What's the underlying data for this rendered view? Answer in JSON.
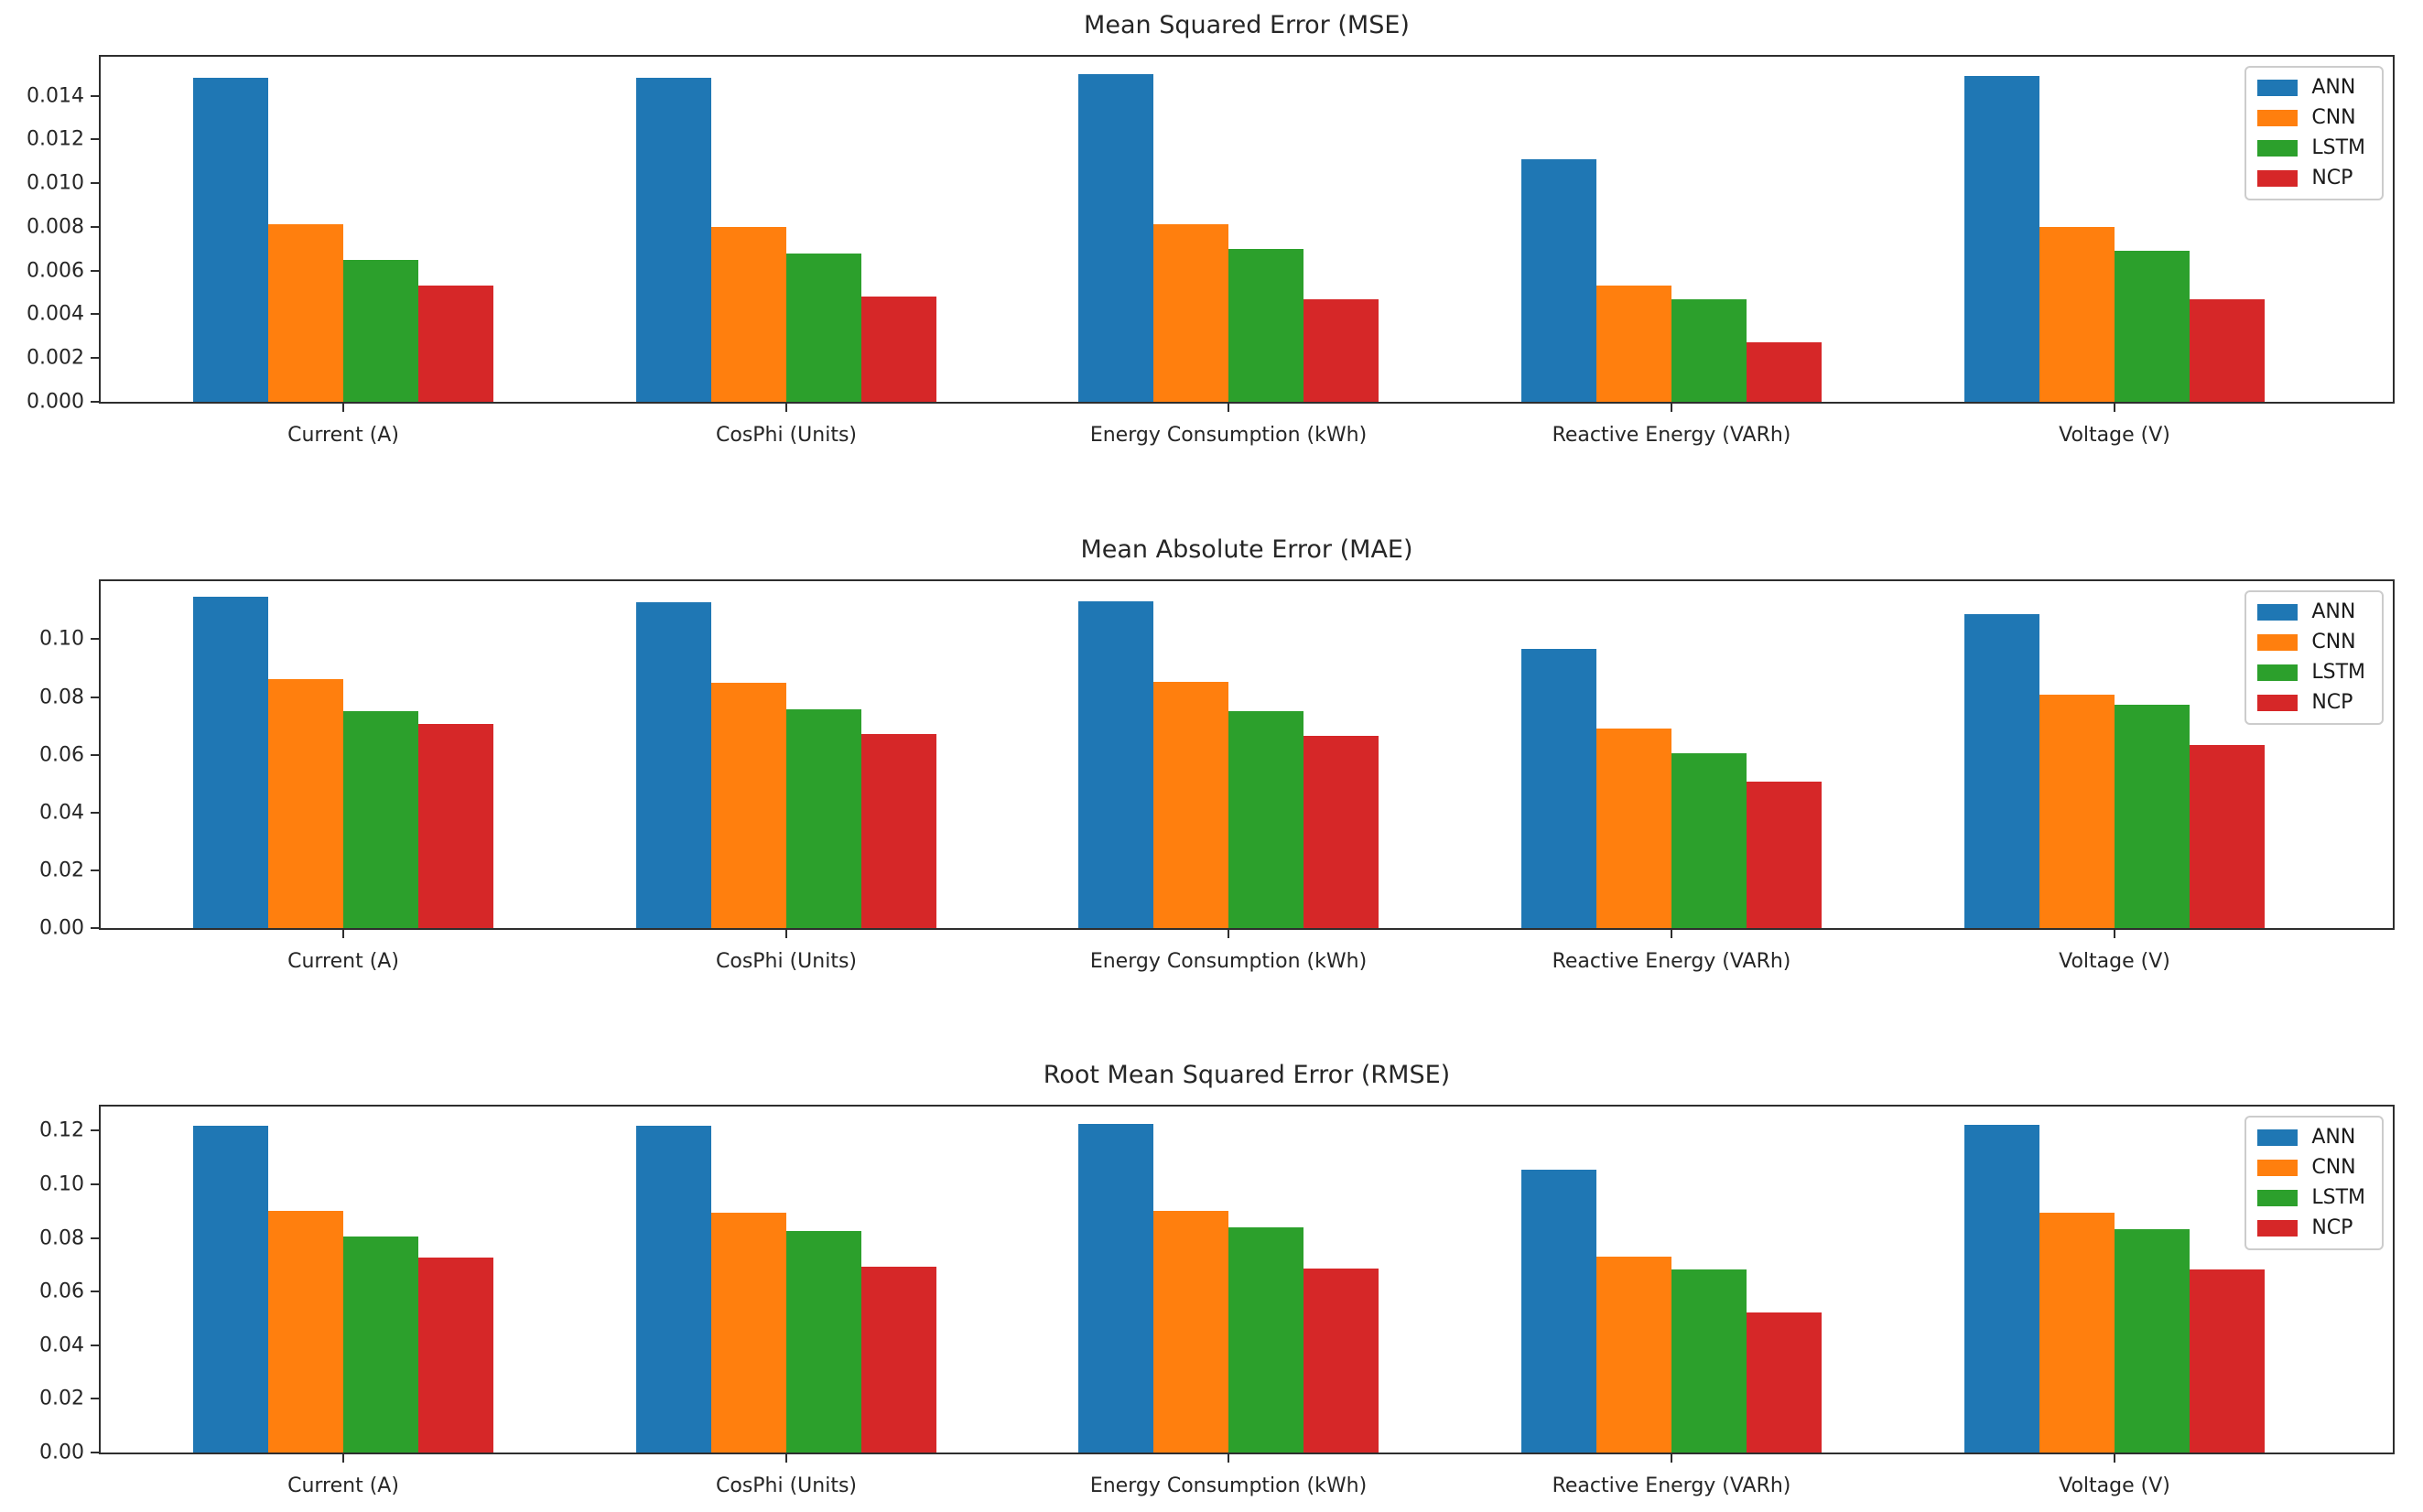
{
  "figure": {
    "background": "#ffffff"
  },
  "palette": {
    "ANN": "#1f77b4",
    "CNN": "#ff7f0e",
    "LSTM": "#2ca02c",
    "NCP": "#d62728"
  },
  "chart_data": [
    {
      "type": "bar",
      "title": "Mean Squared Error (MSE)",
      "categories": [
        "Current (A)",
        "CosPhi (Units)",
        "Energy Consumption (kWh)",
        "Reactive Energy (VARh)",
        "Voltage (V)"
      ],
      "series": [
        {
          "name": "ANN",
          "color": "#1f77b4",
          "values": [
            0.0148,
            0.0148,
            0.015,
            0.0111,
            0.0149
          ]
        },
        {
          "name": "CNN",
          "color": "#ff7f0e",
          "values": [
            0.0081,
            0.008,
            0.0081,
            0.0053,
            0.008
          ]
        },
        {
          "name": "LSTM",
          "color": "#2ca02c",
          "values": [
            0.0065,
            0.0068,
            0.007,
            0.0047,
            0.0069
          ]
        },
        {
          "name": "NCP",
          "color": "#d62728",
          "values": [
            0.0053,
            0.0048,
            0.0047,
            0.0027,
            0.0047
          ]
        }
      ],
      "ylim": [
        0,
        0.01578
      ],
      "yticks": [
        {
          "v": 0.0,
          "label": "0.000"
        },
        {
          "v": 0.002,
          "label": "0.002"
        },
        {
          "v": 0.004,
          "label": "0.004"
        },
        {
          "v": 0.006,
          "label": "0.006"
        },
        {
          "v": 0.008,
          "label": "0.008"
        },
        {
          "v": 0.01,
          "label": "0.010"
        },
        {
          "v": 0.012,
          "label": "0.012"
        },
        {
          "v": 0.014,
          "label": "0.014"
        }
      ],
      "grid": false,
      "legend_position": "upper right"
    },
    {
      "type": "bar",
      "title": "Mean Absolute Error (MAE)",
      "categories": [
        "Current (A)",
        "CosPhi (Units)",
        "Energy Consumption (kWh)",
        "Reactive Energy (VARh)",
        "Voltage (V)"
      ],
      "series": [
        {
          "name": "ANN",
          "color": "#1f77b4",
          "values": [
            0.1148,
            0.1127,
            0.1132,
            0.0968,
            0.1087
          ]
        },
        {
          "name": "CNN",
          "color": "#ff7f0e",
          "values": [
            0.0863,
            0.0848,
            0.0853,
            0.0692,
            0.0807
          ]
        },
        {
          "name": "LSTM",
          "color": "#2ca02c",
          "values": [
            0.0751,
            0.0757,
            0.0751,
            0.0605,
            0.0772
          ]
        },
        {
          "name": "NCP",
          "color": "#d62728",
          "values": [
            0.0706,
            0.0671,
            0.0666,
            0.0506,
            0.0633
          ]
        }
      ],
      "ylim": [
        0,
        0.1201
      ],
      "yticks": [
        {
          "v": 0.0,
          "label": "0.00"
        },
        {
          "v": 0.02,
          "label": "0.02"
        },
        {
          "v": 0.04,
          "label": "0.04"
        },
        {
          "v": 0.06,
          "label": "0.06"
        },
        {
          "v": 0.08,
          "label": "0.08"
        },
        {
          "v": 0.1,
          "label": "0.10"
        }
      ],
      "grid": false,
      "legend_position": "upper right"
    },
    {
      "type": "bar",
      "title": "Root Mean Squared Error (RMSE)",
      "categories": [
        "Current (A)",
        "CosPhi (Units)",
        "Energy Consumption (kWh)",
        "Reactive Energy (VARh)",
        "Voltage (V)"
      ],
      "series": [
        {
          "name": "ANN",
          "color": "#1f77b4",
          "values": [
            0.1218,
            0.1218,
            0.1225,
            0.1053,
            0.1221
          ]
        },
        {
          "name": "CNN",
          "color": "#ff7f0e",
          "values": [
            0.09,
            0.0894,
            0.0902,
            0.0729,
            0.0894
          ]
        },
        {
          "name": "LSTM",
          "color": "#2ca02c",
          "values": [
            0.0806,
            0.0826,
            0.0838,
            0.0684,
            0.0832
          ]
        },
        {
          "name": "NCP",
          "color": "#d62728",
          "values": [
            0.0727,
            0.0694,
            0.0687,
            0.0521,
            0.0684
          ]
        }
      ],
      "ylim": [
        0,
        0.129
      ],
      "yticks": [
        {
          "v": 0.0,
          "label": "0.00"
        },
        {
          "v": 0.02,
          "label": "0.02"
        },
        {
          "v": 0.04,
          "label": "0.04"
        },
        {
          "v": 0.06,
          "label": "0.06"
        },
        {
          "v": 0.08,
          "label": "0.08"
        },
        {
          "v": 0.1,
          "label": "0.10"
        },
        {
          "v": 0.12,
          "label": "0.12"
        }
      ],
      "grid": false,
      "legend_position": "upper right"
    }
  ]
}
